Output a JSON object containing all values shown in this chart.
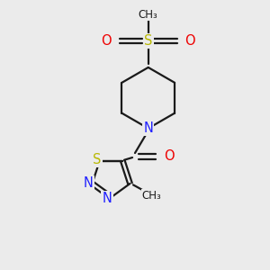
{
  "bg_color": "#ebebeb",
  "fig_size": [
    3.0,
    3.0
  ],
  "dpi": 100,
  "bond_color": "#1a1a1a",
  "bond_lw": 1.6,
  "N_color": "#2020ff",
  "S_color": "#b8b800",
  "O_color": "#ee0000",
  "text_color": "#1a1a1a",
  "font_size": 10.5,
  "font_size_small": 8.5,
  "xlim": [
    0,
    10
  ],
  "ylim": [
    0,
    10
  ]
}
